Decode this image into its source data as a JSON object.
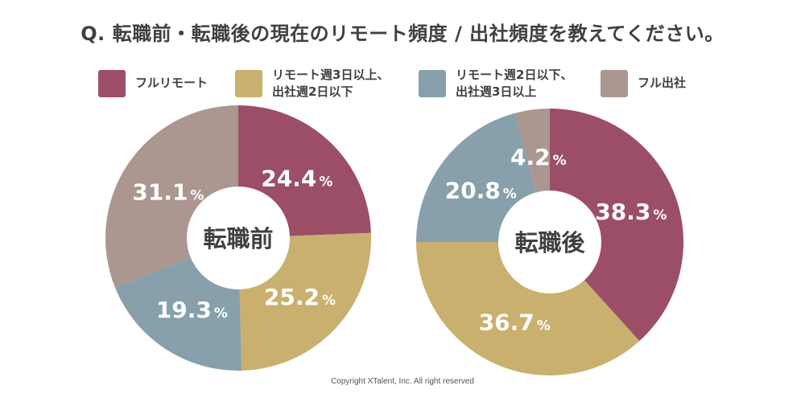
{
  "title": "Q. 転職前・転職後の現在のリモート頻度 / 出社頻度を教えてください。",
  "footer": "Copyright XTalent, Inc. All right reserved",
  "legend": [
    {
      "label": "フルリモート",
      "color": "#9c4e66"
    },
    {
      "label": "リモート週3日以上、\n出社週2日以下",
      "color": "#c9b06e"
    },
    {
      "label": "リモート週2日以下、\n出社週3日以上",
      "color": "#87a0ab"
    },
    {
      "label": "フル出社",
      "color": "#ab9690"
    }
  ],
  "percent_sign": "%",
  "chart_data": [
    {
      "type": "pie",
      "title": "転職前",
      "categories": [
        "フルリモート",
        "リモート週3日以上、出社週2日以下",
        "リモート週2日以下、出社週3日以上",
        "フル出社"
      ],
      "values": [
        24.4,
        25.2,
        19.3,
        31.1
      ],
      "value_labels": [
        "24.4",
        "25.2",
        "19.3",
        "31.1"
      ],
      "colors": [
        "#9c4e66",
        "#c9b06e",
        "#87a0ab",
        "#ab9690"
      ]
    },
    {
      "type": "pie",
      "title": "転職後",
      "categories": [
        "フルリモート",
        "リモート週3日以上、出社週2日以下",
        "リモート週2日以下、出社週3日以上",
        "フル出社"
      ],
      "values": [
        38.3,
        36.7,
        20.8,
        4.2
      ],
      "value_labels": [
        "38.3",
        "36.7",
        "20.8",
        "4.2"
      ],
      "colors": [
        "#9c4e66",
        "#c9b06e",
        "#87a0ab",
        "#ab9690"
      ]
    }
  ]
}
